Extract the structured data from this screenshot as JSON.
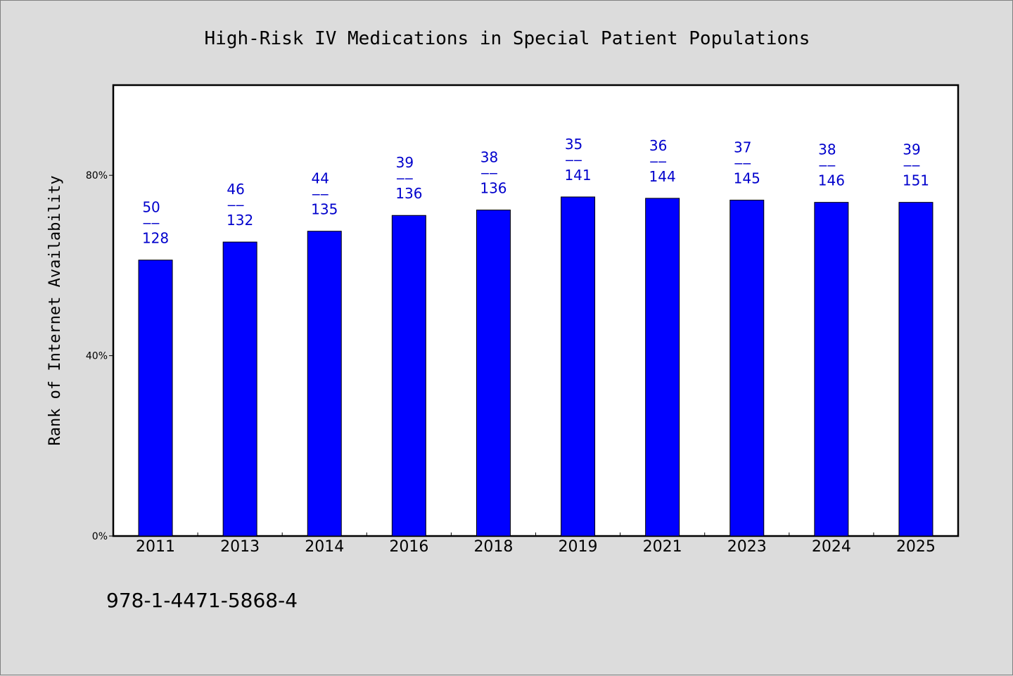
{
  "chart_data": {
    "type": "bar",
    "title": "High-Risk IV Medications in Special Patient Populations",
    "ylabel": "Rank of Internet Availability",
    "xlabel": "",
    "categories": [
      "2011",
      "2013",
      "2014",
      "2016",
      "2018",
      "2019",
      "2021",
      "2023",
      "2024",
      "2025"
    ],
    "values": [
      61.2,
      65.2,
      67.6,
      71.1,
      72.3,
      75.2,
      74.9,
      74.5,
      74.0,
      74.0
    ],
    "data_labels": [
      {
        "top": "50",
        "sep": "——",
        "bottom": "128"
      },
      {
        "top": "46",
        "sep": "——",
        "bottom": "132"
      },
      {
        "top": "44",
        "sep": "——",
        "bottom": "135"
      },
      {
        "top": "39",
        "sep": "——",
        "bottom": "136"
      },
      {
        "top": "38",
        "sep": "——",
        "bottom": "136"
      },
      {
        "top": "35",
        "sep": "——",
        "bottom": "141"
      },
      {
        "top": "36",
        "sep": "——",
        "bottom": "144"
      },
      {
        "top": "37",
        "sep": "——",
        "bottom": "145"
      },
      {
        "top": "38",
        "sep": "——",
        "bottom": "146"
      },
      {
        "top": "39",
        "sep": "——",
        "bottom": "151"
      }
    ],
    "ylim": [
      0,
      100
    ],
    "yticks": [
      0,
      40,
      80
    ],
    "ytick_labels": [
      "0%",
      "40%",
      "80%"
    ],
    "grid": false,
    "legend": "none",
    "colors": {
      "bar": "#0000ff",
      "label": "#0000cc",
      "plot_background": "#ffffff",
      "page_background": "#dcdcdc"
    }
  },
  "footnote": "978-1-4471-5868-4"
}
